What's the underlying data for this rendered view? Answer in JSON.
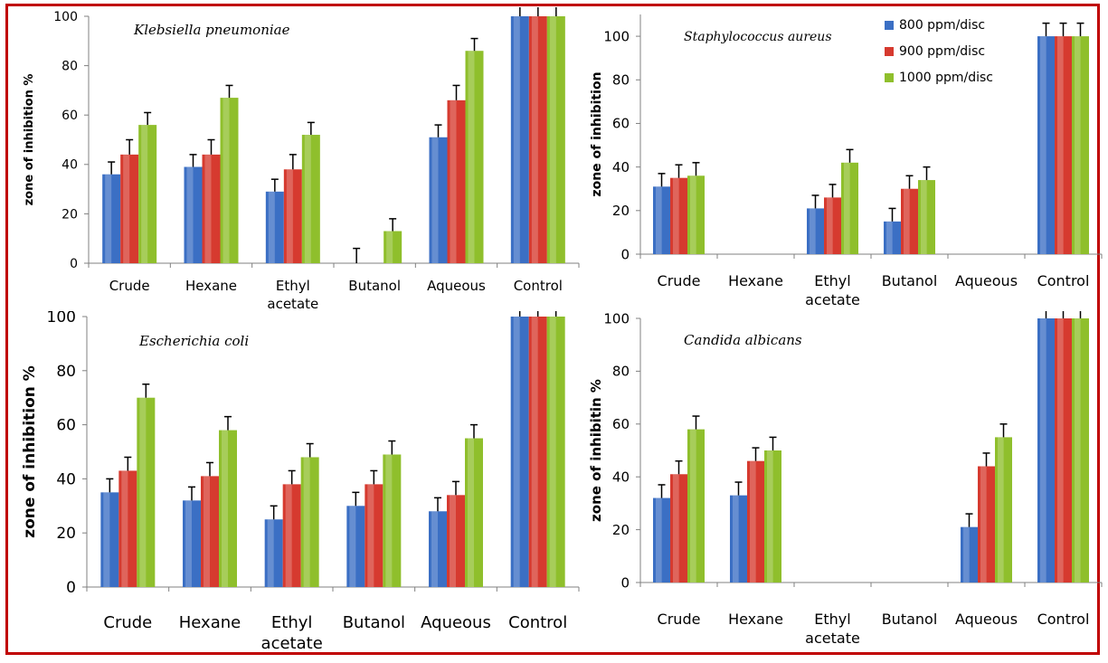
{
  "colors": {
    "800": "#3b6fc4",
    "900": "#d63a2f",
    "1000": "#8fbf2c"
  },
  "legend": [
    "800 ppm/disc",
    "900 ppm/disc",
    "1000 ppm/disc"
  ],
  "chart_data": [
    {
      "type": "bar",
      "title": "Klebsiella pneumoniae",
      "ylabel": "zone of inhibition %",
      "categories": [
        [
          "Crude"
        ],
        [
          "Hexane"
        ],
        [
          "Ethyl",
          "acetate"
        ],
        [
          "Butanol"
        ],
        [
          "Aqueous"
        ],
        [
          "Control"
        ]
      ],
      "ylim": [
        0,
        100
      ],
      "yticks": [
        0,
        20,
        40,
        60,
        80,
        100
      ],
      "series": [
        {
          "name": "800 ppm/disc",
          "values": [
            36,
            39,
            29,
            0,
            51,
            100
          ],
          "errors": [
            5,
            5,
            5,
            6,
            5,
            5
          ]
        },
        {
          "name": "900 ppm/disc",
          "values": [
            44,
            44,
            38,
            0,
            66,
            100
          ],
          "errors": [
            6,
            6,
            6,
            0,
            6,
            6
          ]
        },
        {
          "name": "1000 ppm/disc",
          "values": [
            56,
            67,
            52,
            13,
            86,
            100
          ],
          "errors": [
            5,
            5,
            5,
            5,
            5,
            5
          ]
        }
      ]
    },
    {
      "type": "bar",
      "title": "Staphylococcus aureus",
      "ylabel": "zone of inhibition",
      "categories": [
        [
          "Crude"
        ],
        [
          "Hexane"
        ],
        [
          "Ethyl",
          "acetate"
        ],
        [
          "Butanol"
        ],
        [
          "Aqueous"
        ],
        [
          "Control"
        ]
      ],
      "ylim": [
        0,
        110
      ],
      "yticks": [
        0,
        20,
        40,
        60,
        80,
        100
      ],
      "series": [
        {
          "name": "800 ppm/disc",
          "values": [
            31,
            0,
            21,
            15,
            0,
            100
          ],
          "errors": [
            6,
            0,
            6,
            6,
            0,
            6
          ]
        },
        {
          "name": "900 ppm/disc",
          "values": [
            35,
            0,
            26,
            30,
            0,
            100
          ],
          "errors": [
            6,
            0,
            6,
            6,
            0,
            6
          ]
        },
        {
          "name": "1000 ppm/disc",
          "values": [
            36,
            0,
            42,
            34,
            0,
            100
          ],
          "errors": [
            6,
            0,
            6,
            6,
            0,
            6
          ]
        }
      ]
    },
    {
      "type": "bar",
      "title": "Escherichia coli",
      "ylabel": "zone of inhibition %",
      "categories": [
        [
          "Crude"
        ],
        [
          "Hexane"
        ],
        [
          "Ethyl",
          "acetate"
        ],
        [
          "Butanol"
        ],
        [
          "Aqueous"
        ],
        [
          "Control"
        ]
      ],
      "ylim": [
        0,
        100
      ],
      "yticks": [
        0,
        20,
        40,
        60,
        80,
        100
      ],
      "series": [
        {
          "name": "800 ppm/disc",
          "values": [
            35,
            32,
            25,
            30,
            28,
            100
          ],
          "errors": [
            5,
            5,
            5,
            5,
            5,
            5
          ]
        },
        {
          "name": "900 ppm/disc",
          "values": [
            43,
            41,
            38,
            38,
            34,
            100
          ],
          "errors": [
            5,
            5,
            5,
            5,
            5,
            5
          ]
        },
        {
          "name": "1000 ppm/disc",
          "values": [
            70,
            58,
            48,
            49,
            55,
            100
          ],
          "errors": [
            5,
            5,
            5,
            5,
            5,
            5
          ]
        }
      ]
    },
    {
      "type": "bar",
      "title": "Candida albicans",
      "ylabel": "zone of inhibitin %",
      "categories": [
        [
          "Crude"
        ],
        [
          "Hexane"
        ],
        [
          "Ethyl",
          "acetate"
        ],
        [
          "Butanol"
        ],
        [
          "Aqueous"
        ],
        [
          "Control"
        ]
      ],
      "ylim": [
        0,
        100
      ],
      "yticks": [
        0,
        20,
        40,
        60,
        80,
        100
      ],
      "series": [
        {
          "name": "800 ppm/disc",
          "values": [
            32,
            33,
            0,
            0,
            21,
            100
          ],
          "errors": [
            5,
            5,
            0,
            0,
            5,
            5
          ]
        },
        {
          "name": "900 ppm/disc",
          "values": [
            41,
            46,
            0,
            0,
            44,
            100
          ],
          "errors": [
            5,
            5,
            0,
            0,
            5,
            5
          ]
        },
        {
          "name": "1000 ppm/disc",
          "values": [
            58,
            50,
            0,
            0,
            55,
            100
          ],
          "errors": [
            5,
            5,
            0,
            0,
            5,
            5
          ]
        }
      ]
    }
  ]
}
